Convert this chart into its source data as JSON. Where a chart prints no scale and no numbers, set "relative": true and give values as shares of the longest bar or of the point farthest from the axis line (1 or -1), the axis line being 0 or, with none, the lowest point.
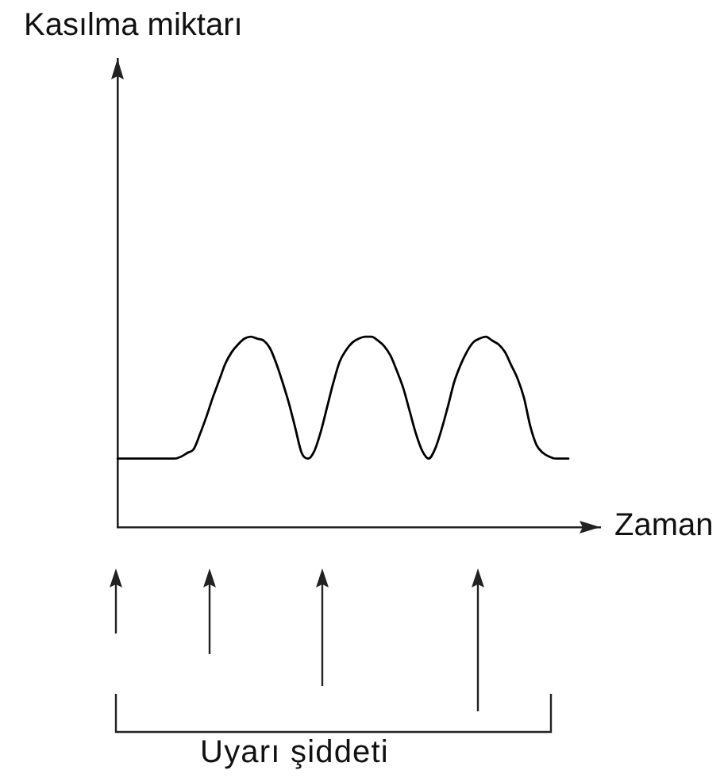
{
  "chart_data": {
    "type": "line",
    "title": "Kasılma miktarı",
    "xlabel": "Zaman",
    "annotations": [
      "Uyarı şiddeti"
    ],
    "relative": true,
    "categories": [
      null,
      null,
      null,
      null,
      null,
      null,
      null,
      null,
      null,
      null,
      null,
      null,
      null,
      null,
      null,
      null,
      null,
      null,
      null,
      null,
      null,
      null,
      null,
      null,
      null,
      null,
      null,
      null,
      null,
      null,
      null,
      null,
      null,
      null,
      null,
      null,
      null,
      null,
      null,
      null,
      null,
      null,
      null,
      null,
      null,
      null,
      null,
      null,
      null,
      null,
      null,
      null,
      null,
      null,
      null,
      null,
      null,
      null,
      null,
      null,
      null,
      null,
      null,
      null,
      null,
      null,
      null,
      null,
      null,
      null,
      null,
      null,
      null,
      null,
      null,
      null,
      null
    ],
    "series": [
      {
        "color": "#000000",
        "values": [
          0.36,
          0.36,
          0.36,
          0.36,
          0.36,
          0.36,
          0.36,
          0.36,
          0.36,
          0.36,
          0.37,
          0.39,
          0.41,
          0.49,
          0.58,
          0.68,
          0.77,
          0.86,
          0.92,
          0.96,
          0.99,
          1,
          0.99,
          0.98,
          0.94,
          0.86,
          0.76,
          0.65,
          0.52,
          0.39,
          0.36,
          0.4,
          0.5,
          0.63,
          0.76,
          0.87,
          0.93,
          0.97,
          0.99,
          1,
          1,
          0.98,
          0.95,
          0.9,
          0.82,
          0.73,
          0.61,
          0.49,
          0.4,
          0.36,
          0.41,
          0.51,
          0.63,
          0.76,
          0.85,
          0.92,
          0.97,
          0.99,
          1,
          0.98,
          0.96,
          0.92,
          0.85,
          0.78,
          0.68,
          0.53,
          0.43,
          0.39,
          0.37,
          0.36,
          0.36,
          0.36,
          null,
          null,
          null,
          null,
          null
        ]
      }
    ],
    "grid": false,
    "legend": false,
    "tick_labels": false,
    "marker": "none",
    "line_style": "solid"
  }
}
